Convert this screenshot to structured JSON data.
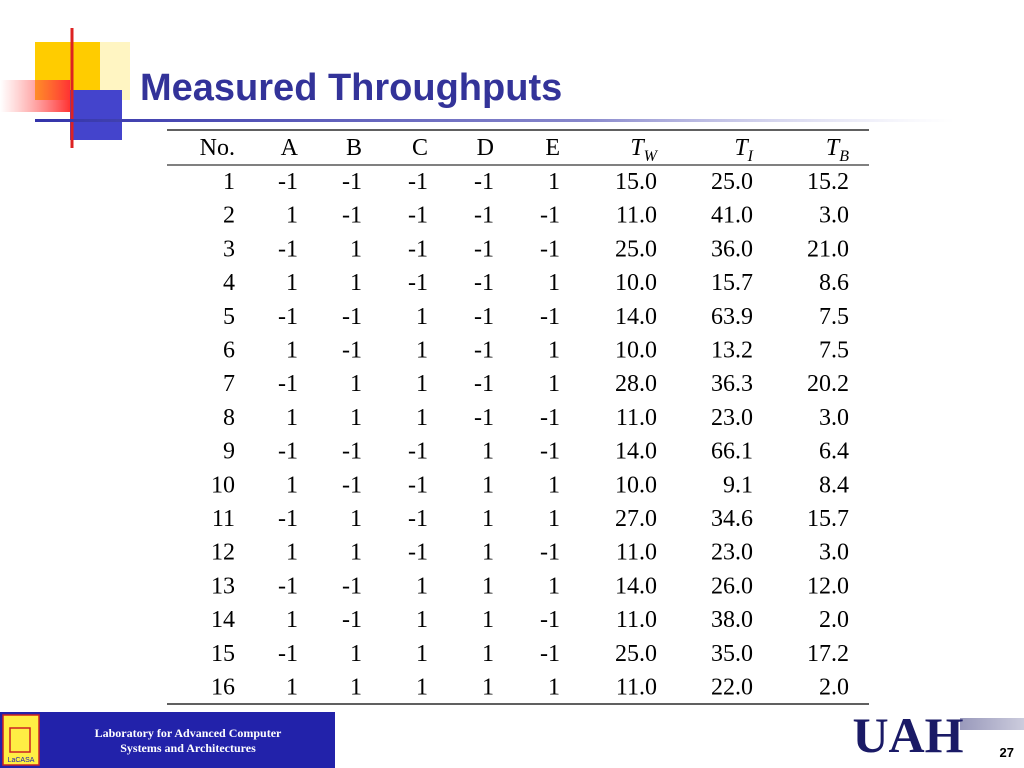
{
  "slide": {
    "title": "Measured Throughputs",
    "table": {
      "header": [
        "No.",
        "A",
        "B",
        "C",
        "D",
        "E",
        {
          "main": "T",
          "sub": "W"
        },
        {
          "main": "T",
          "sub": "I"
        },
        {
          "main": "T",
          "sub": "B"
        }
      ],
      "rows": [
        [
          "1",
          "-1",
          "-1",
          "-1",
          "-1",
          "1",
          "15.0",
          "25.0",
          "15.2"
        ],
        [
          "2",
          "1",
          "-1",
          "-1",
          "-1",
          "-1",
          "11.0",
          "41.0",
          "3.0"
        ],
        [
          "3",
          "-1",
          "1",
          "-1",
          "-1",
          "-1",
          "25.0",
          "36.0",
          "21.0"
        ],
        [
          "4",
          "1",
          "1",
          "-1",
          "-1",
          "1",
          "10.0",
          "15.7",
          "8.6"
        ],
        [
          "5",
          "-1",
          "-1",
          "1",
          "-1",
          "-1",
          "14.0",
          "63.9",
          "7.5"
        ],
        [
          "6",
          "1",
          "-1",
          "1",
          "-1",
          "1",
          "10.0",
          "13.2",
          "7.5"
        ],
        [
          "7",
          "-1",
          "1",
          "1",
          "-1",
          "1",
          "28.0",
          "36.3",
          "20.2"
        ],
        [
          "8",
          "1",
          "1",
          "1",
          "-1",
          "-1",
          "11.0",
          "23.0",
          "3.0"
        ],
        [
          "9",
          "-1",
          "-1",
          "-1",
          "1",
          "-1",
          "14.0",
          "66.1",
          "6.4"
        ],
        [
          "10",
          "1",
          "-1",
          "-1",
          "1",
          "1",
          "10.0",
          "9.1",
          "8.4"
        ],
        [
          "11",
          "-1",
          "1",
          "-1",
          "1",
          "1",
          "27.0",
          "34.6",
          "15.7"
        ],
        [
          "12",
          "1",
          "1",
          "-1",
          "1",
          "-1",
          "11.0",
          "23.0",
          "3.0"
        ],
        [
          "13",
          "-1",
          "-1",
          "1",
          "1",
          "1",
          "14.0",
          "26.0",
          "12.0"
        ],
        [
          "14",
          "1",
          "-1",
          "1",
          "1",
          "-1",
          "11.0",
          "38.0",
          "2.0"
        ],
        [
          "15",
          "-1",
          "1",
          "1",
          "1",
          "-1",
          "25.0",
          "35.0",
          "17.2"
        ],
        [
          "16",
          "1",
          "1",
          "1",
          "1",
          "1",
          "11.0",
          "22.0",
          "2.0"
        ]
      ]
    },
    "footer": {
      "lab_line1": "Laboratory for Advanced Computer",
      "lab_line2": "Systems and Architectures",
      "lab_logo": "LaCASA",
      "uni_logo": "UAH",
      "page": "27"
    }
  }
}
